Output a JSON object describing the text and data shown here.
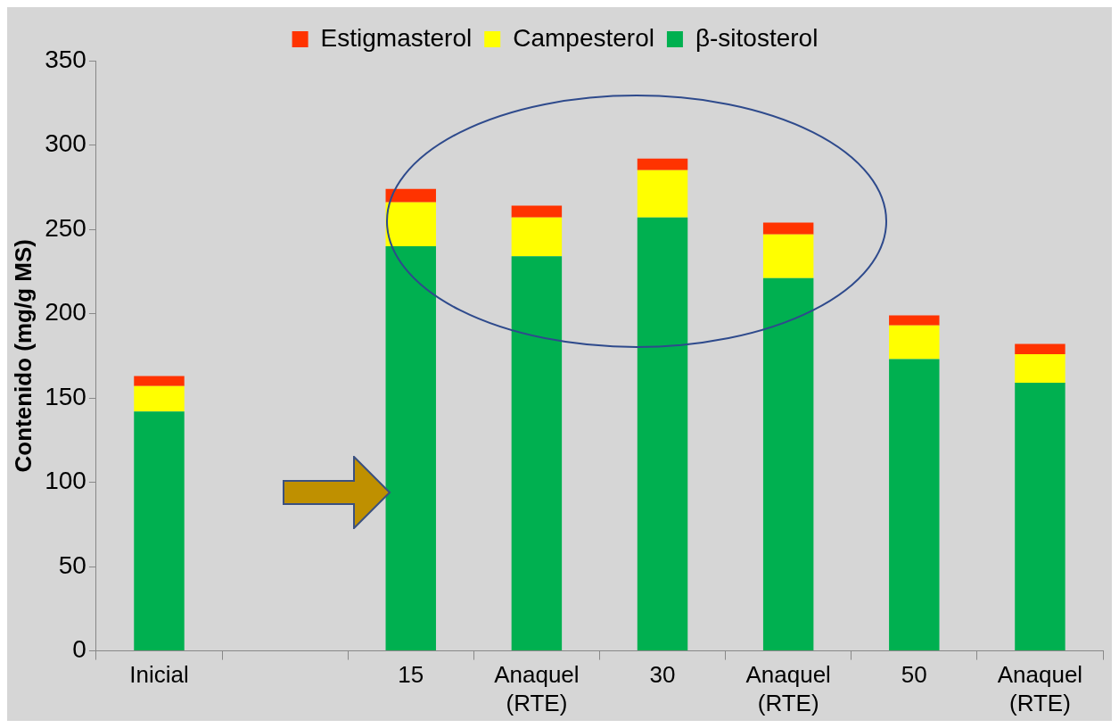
{
  "chart_data": {
    "type": "bar",
    "ylabel": "Contenido (mg/g MS)",
    "categories": [
      "Inicial",
      null,
      "15",
      "Anaquel (RTE)",
      "30",
      "Anaquel (RTE)",
      "50",
      "Anaquel (RTE)"
    ],
    "stacked": true,
    "legend": "top",
    "grid": false,
    "ylim": [
      0,
      350
    ],
    "yticks": [
      0,
      50,
      100,
      150,
      200,
      250,
      300,
      350
    ],
    "series": [
      {
        "name": "β-sitosterol",
        "color": "#00b050",
        "values": [
          142,
          null,
          240,
          234,
          257,
          221,
          173,
          159
        ]
      },
      {
        "name": "Campesterol",
        "color": "#ffff00",
        "values": [
          15,
          null,
          26,
          23,
          28,
          26,
          20,
          17
        ]
      },
      {
        "name": "Estigmasterol",
        "color": "#ff3300",
        "values": [
          6,
          null,
          8,
          7,
          7,
          7,
          6,
          6
        ]
      }
    ]
  }
}
